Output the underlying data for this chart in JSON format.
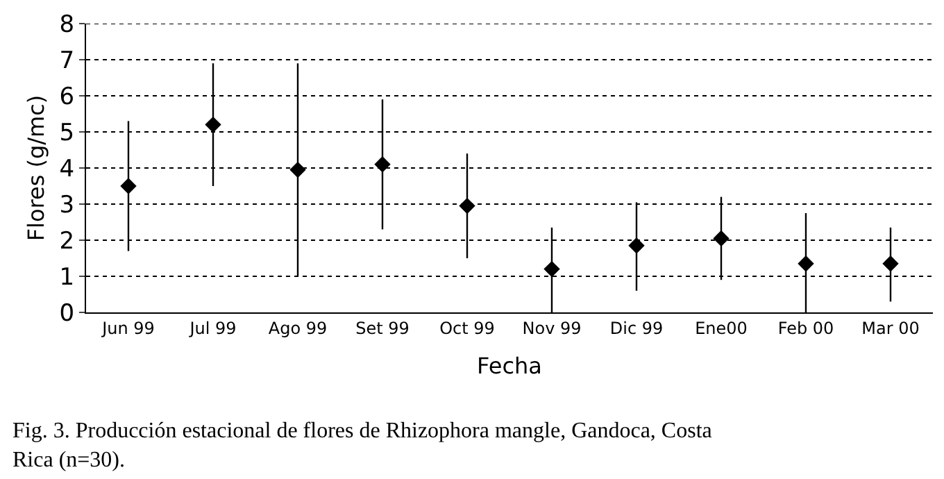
{
  "chart_data": {
    "type": "scatter",
    "categories": [
      "Jun 99",
      "Jul 99",
      "Ago 99",
      "Set 99",
      "Oct 99",
      "Nov 99",
      "Dic 99",
      "Ene00",
      "Feb 00",
      "Mar 00"
    ],
    "values": [
      3.5,
      5.2,
      3.95,
      4.1,
      2.95,
      1.2,
      1.85,
      2.05,
      1.35,
      1.35
    ],
    "errors": [
      [
        1.7,
        5.3
      ],
      [
        3.5,
        6.9
      ],
      [
        1.0,
        6.9
      ],
      [
        2.3,
        5.9
      ],
      [
        1.5,
        4.4
      ],
      [
        0.0,
        2.35
      ],
      [
        0.6,
        3.05
      ],
      [
        0.9,
        3.2
      ],
      [
        0.0,
        2.75
      ],
      [
        0.3,
        2.35
      ]
    ],
    "color": "#000000",
    "marker": "diamond",
    "xlabel": "Fecha",
    "ylabel": "Flores (g/mc)",
    "ylim": [
      0,
      8
    ],
    "yticks": [
      0,
      1,
      2,
      3,
      4,
      5,
      6,
      7,
      8
    ],
    "grid": "y",
    "annotations": [
      "Fig. 3. Producción estacional de flores de Rhizophora mangle, Gandoca, Costa Rica (n=30)."
    ]
  }
}
